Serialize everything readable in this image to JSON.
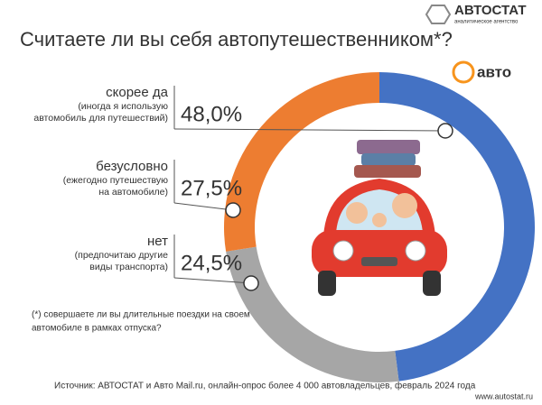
{
  "logo": {
    "name": "АВТОСТАТ",
    "tagline": "аналитическое агентство",
    "partner": "авто"
  },
  "chart_data": {
    "type": "donut",
    "title": "Считаете ли вы себя автопутешественником*?",
    "items": [
      {
        "name": "скорее да",
        "description": [
          "(иногда я использую",
          "автомобиль для путешествий)"
        ],
        "value": 48.0,
        "value_label": "48,0%",
        "color": "#4472c4"
      },
      {
        "name": "нет",
        "description": [
          "(предпочитаю другие",
          "виды транспорта)"
        ],
        "value": 24.5,
        "value_label": "24,5%",
        "color": "#a6a6a6"
      },
      {
        "name": "безусловно",
        "description": [
          "(ежегодно путешествую",
          "на автомобиле)"
        ],
        "value": 27.5,
        "value_label": "27,5%",
        "color": "#ed7d31"
      }
    ],
    "footnote": [
      "(*) совершаете ли вы длительные поездки на своем",
      "автомобиле в рамках отпуска?"
    ],
    "source": "Источник: АВТОСТАТ и Авто Mail.ru, онлайн-опрос более 4 000 автовладельцев, февраль 2024 года"
  },
  "url": "www.autostat.ru"
}
